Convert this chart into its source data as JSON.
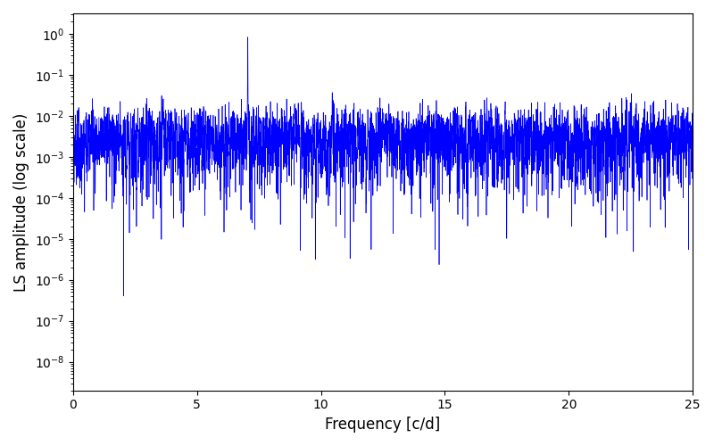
{
  "xlabel": "Frequency [c/d]",
  "ylabel": "LS amplitude (log scale)",
  "line_color": "#0000ff",
  "xlim": [
    0,
    25
  ],
  "ylim_log": [
    -8.7,
    0.5
  ],
  "xticks": [
    0,
    5,
    10,
    15,
    20,
    25
  ],
  "figsize": [
    8.0,
    5.0
  ],
  "dpi": 100,
  "seed": 12345,
  "freq_max": 25.0,
  "main_freq": 7.05,
  "background_color": "#ffffff",
  "linewidth": 0.5
}
